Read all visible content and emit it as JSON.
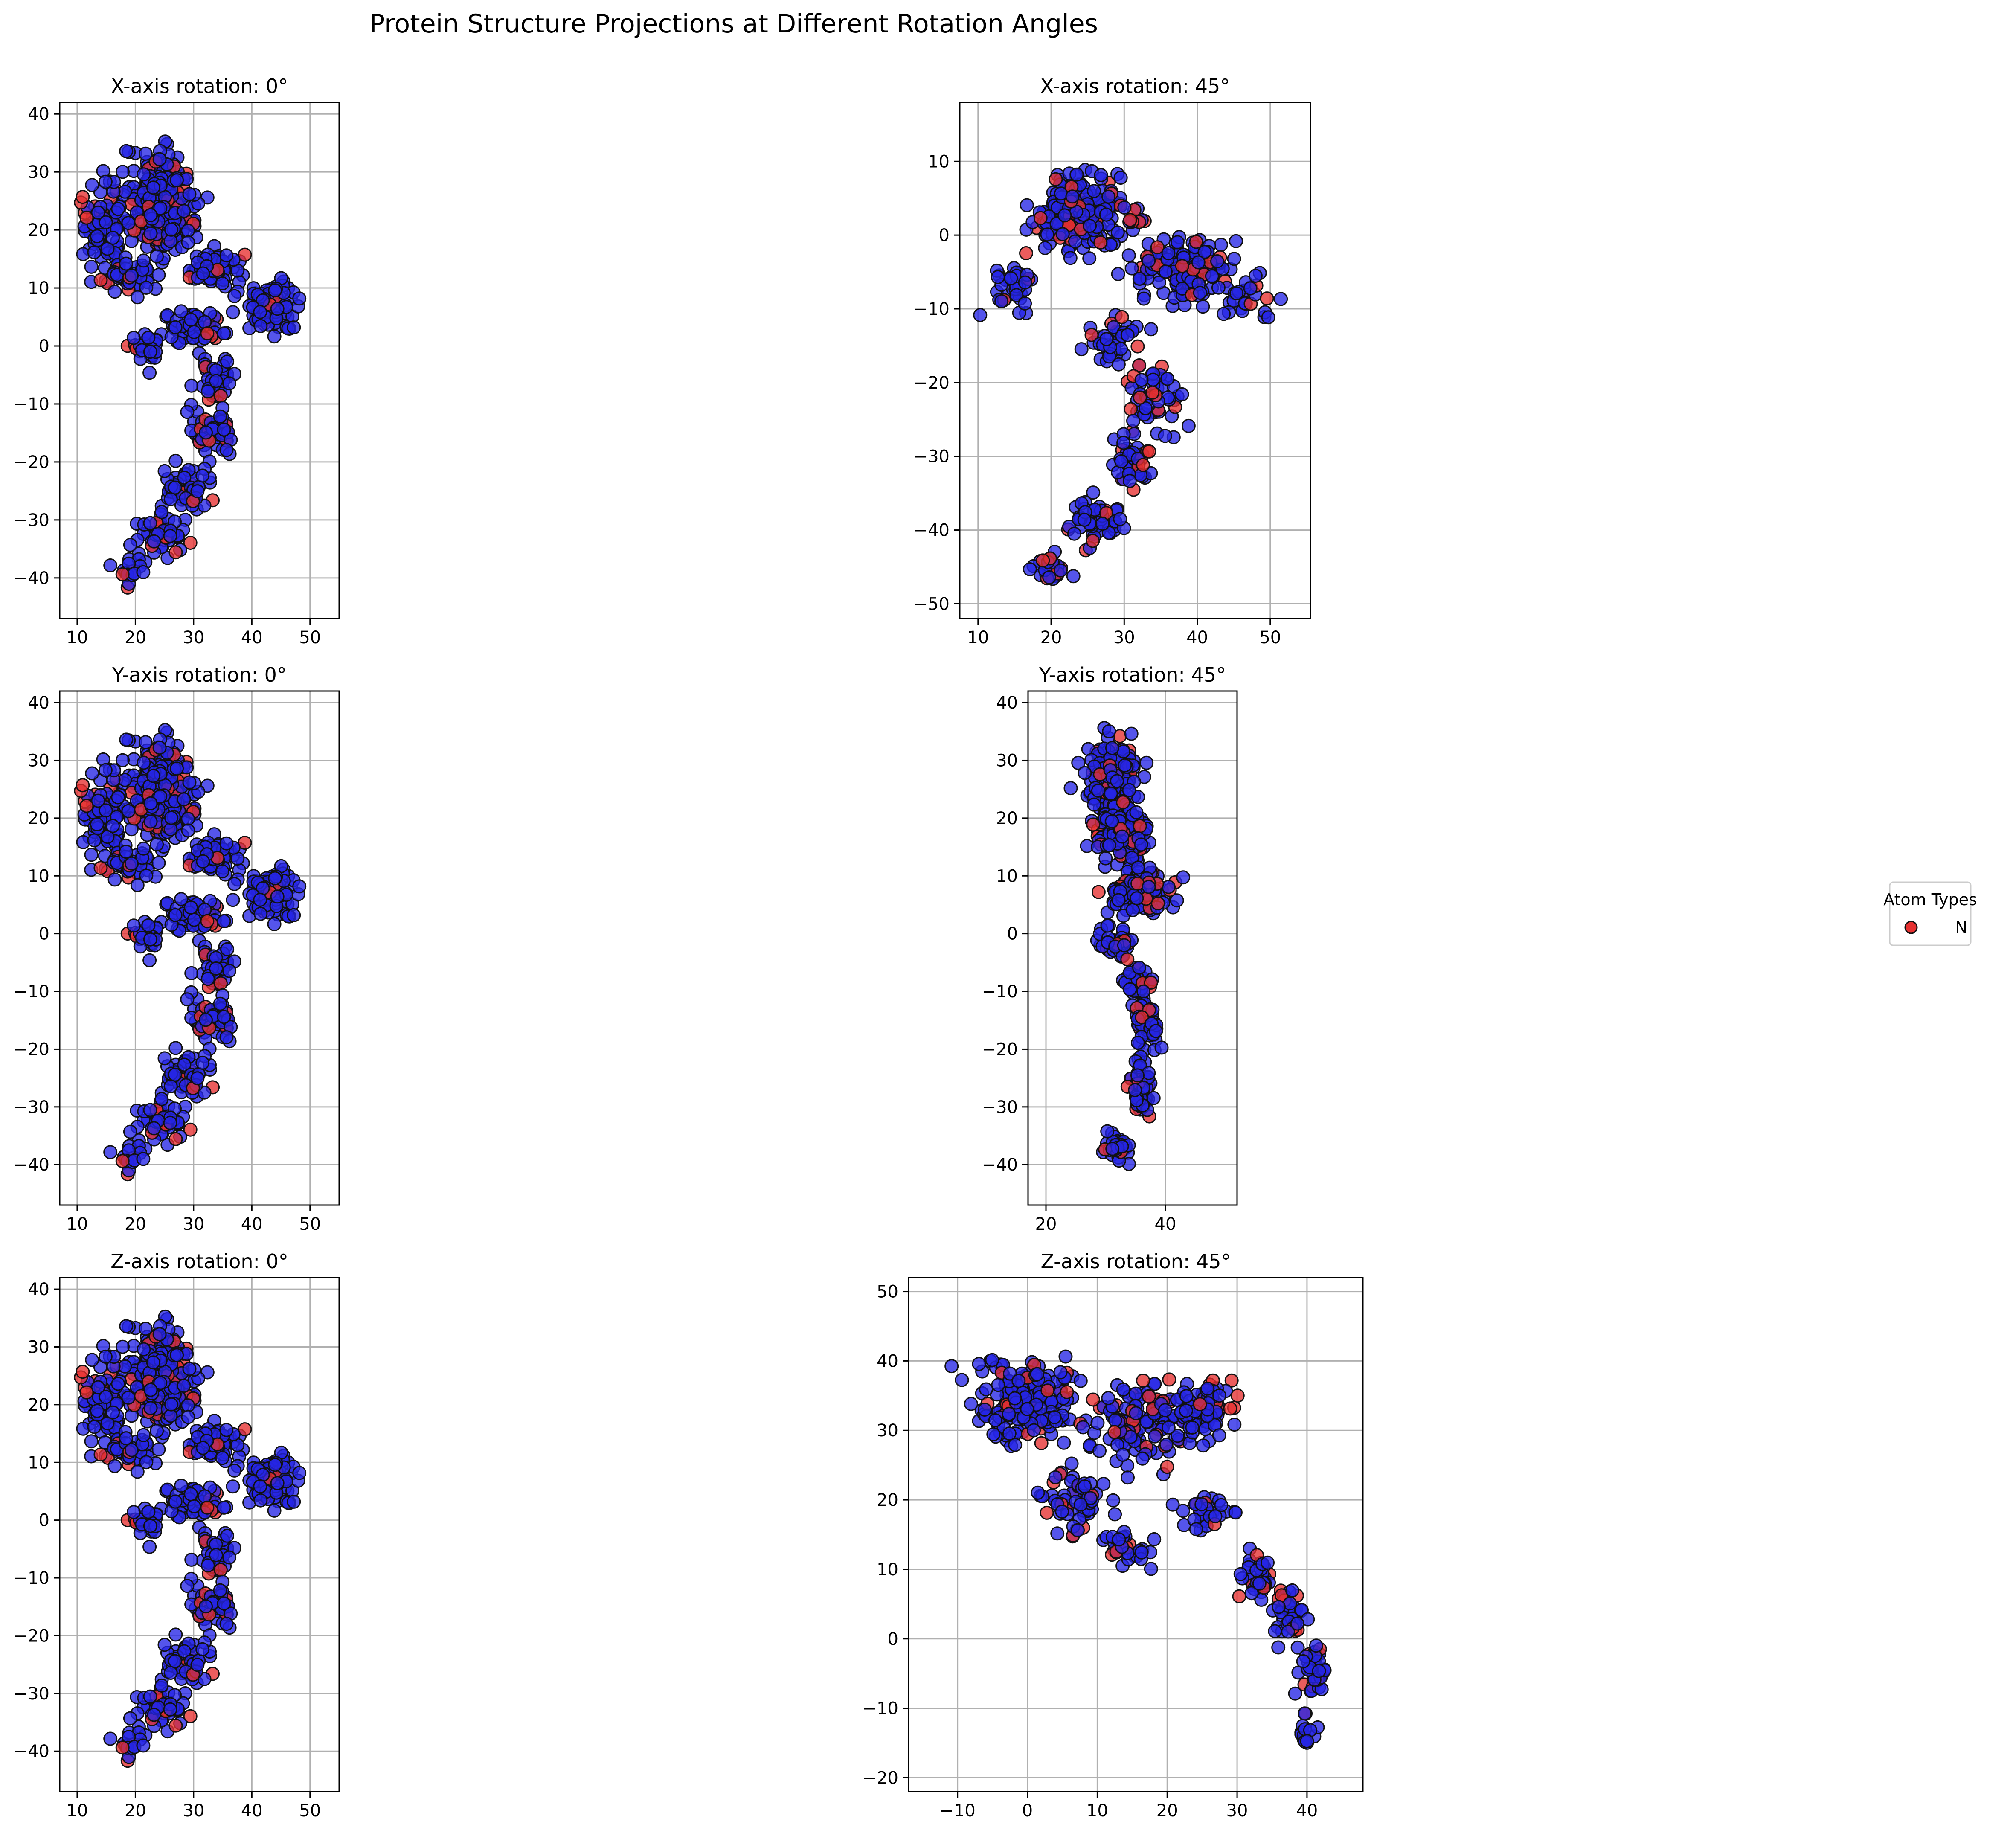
{
  "figure": {
    "title": "Protein Structure Projections at Different Rotation Angles"
  },
  "legend": {
    "title": "Atom Types",
    "entries": [
      {
        "label": "N",
        "color": "#e53030"
      }
    ],
    "placement": "right"
  },
  "colors": {
    "highlight_atom": "#e53030",
    "other_atom": "#2525e6",
    "marker_edge": "#111111"
  },
  "chart_data": [
    {
      "type": "scatter",
      "title": "X-axis rotation: 0°",
      "xlim": [
        7,
        55
      ],
      "ylim": [
        -47,
        42
      ],
      "xticks": [
        10,
        20,
        30,
        40,
        50
      ],
      "yticks": [
        -40,
        -30,
        -20,
        -10,
        0,
        10,
        20,
        30,
        40
      ],
      "grid": true,
      "shape": "protein",
      "series": [
        {
          "name": "N",
          "color": "#e53030"
        }
      ]
    },
    {
      "type": "scatter",
      "title": "X-axis rotation: 45°",
      "xlim": [
        7.5,
        55.5
      ],
      "ylim": [
        -52,
        18
      ],
      "xticks": [
        10,
        20,
        30,
        40,
        50
      ],
      "yticks": [
        -50,
        -40,
        -30,
        -20,
        -10,
        0,
        10
      ],
      "grid": true,
      "shape": "protein_x45",
      "series": [
        {
          "name": "N",
          "color": "#e53030"
        }
      ]
    },
    {
      "type": "scatter",
      "title": "Y-axis rotation: 0°",
      "xlim": [
        7,
        55
      ],
      "ylim": [
        -47,
        42
      ],
      "xticks": [
        10,
        20,
        30,
        40,
        50
      ],
      "yticks": [
        -40,
        -30,
        -20,
        -10,
        0,
        10,
        20,
        30,
        40
      ],
      "grid": true,
      "shape": "protein",
      "series": [
        {
          "name": "N",
          "color": "#e53030"
        }
      ]
    },
    {
      "type": "scatter",
      "title": "Y-axis rotation: 45°",
      "xlim": [
        17,
        52
      ],
      "ylim": [
        -47,
        42
      ],
      "xticks": [
        20,
        40
      ],
      "yticks": [
        -40,
        -30,
        -20,
        -10,
        0,
        10,
        20,
        30,
        40
      ],
      "grid": true,
      "shape": "protein_y45",
      "series": [
        {
          "name": "N",
          "color": "#e53030"
        }
      ]
    },
    {
      "type": "scatter",
      "title": "Z-axis rotation: 0°",
      "xlim": [
        7,
        55
      ],
      "ylim": [
        -47,
        42
      ],
      "xticks": [
        10,
        20,
        30,
        40,
        50
      ],
      "yticks": [
        -40,
        -30,
        -20,
        -10,
        0,
        10,
        20,
        30,
        40
      ],
      "grid": true,
      "shape": "protein",
      "series": [
        {
          "name": "N",
          "color": "#e53030"
        }
      ]
    },
    {
      "type": "scatter",
      "title": "Z-axis rotation: 45°",
      "xlim": [
        -17,
        48
      ],
      "ylim": [
        -22,
        52
      ],
      "xticks": [
        -10,
        0,
        10,
        20,
        30,
        40
      ],
      "yticks": [
        -20,
        -10,
        0,
        10,
        20,
        30,
        40,
        50
      ],
      "grid": true,
      "shape": "protein_z45",
      "series": [
        {
          "name": "N",
          "color": "#e53030"
        }
      ]
    }
  ]
}
